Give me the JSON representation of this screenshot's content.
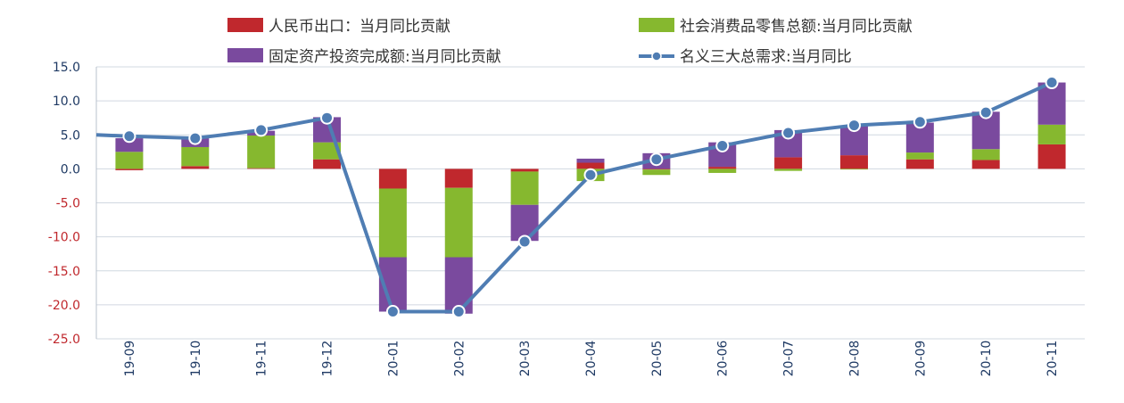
{
  "chart_data": {
    "type": "bar",
    "stacked": true,
    "categories": [
      "19-09",
      "19-10",
      "19-11",
      "19-12",
      "20-01",
      "20-02",
      "20-03",
      "20-04",
      "20-05",
      "20-06",
      "20-07",
      "20-08",
      "20-09",
      "20-10",
      "20-11"
    ],
    "series": [
      {
        "name": "人民币出口：当月同比贡献",
        "kind": "bar",
        "color": "#c0282d",
        "values": [
          -0.2,
          0.4,
          0.1,
          1.4,
          -2.9,
          -2.8,
          -0.4,
          0.9,
          -0.1,
          0.3,
          1.7,
          2.0,
          1.4,
          1.3,
          3.6
        ]
      },
      {
        "name": "社会消费品零售总额:当月同比贡献",
        "kind": "bar",
        "color": "#86b82f",
        "values": [
          2.5,
          2.8,
          4.8,
          2.5,
          -10.1,
          -10.2,
          -4.9,
          -1.8,
          -0.8,
          -0.6,
          -0.3,
          -0.1,
          1.0,
          1.6,
          2.9
        ]
      },
      {
        "name": "固定资产投资完成额:当月同比贡献",
        "kind": "bar",
        "color": "#7a4a9e",
        "values": [
          2.0,
          1.3,
          0.7,
          3.7,
          -8.0,
          -8.3,
          -5.3,
          0.6,
          2.3,
          3.6,
          4.0,
          4.3,
          4.4,
          5.5,
          6.2
        ]
      },
      {
        "name": "名义三大总需求:当月同比",
        "kind": "line",
        "color": "#4f7db3",
        "values": [
          4.8,
          4.5,
          5.7,
          7.5,
          -21.0,
          -21.0,
          -10.7,
          -0.9,
          1.4,
          3.4,
          5.3,
          6.4,
          6.9,
          8.3,
          12.7
        ]
      }
    ],
    "line_start_value": 5.0,
    "ylim": [
      -25,
      15
    ],
    "yticks": [
      "15.0",
      "10.0",
      "5.0",
      "0.0",
      "-5.0",
      "-10.0",
      "-15.0",
      "-20.0",
      "-25.0"
    ],
    "ytick_values": [
      15,
      10,
      5,
      0,
      -5,
      -10,
      -15,
      -20,
      -25
    ],
    "positive_tick_color": "#1f3a64",
    "negative_tick_color": "#c0282d",
    "grid": true,
    "legend_position": "top"
  }
}
